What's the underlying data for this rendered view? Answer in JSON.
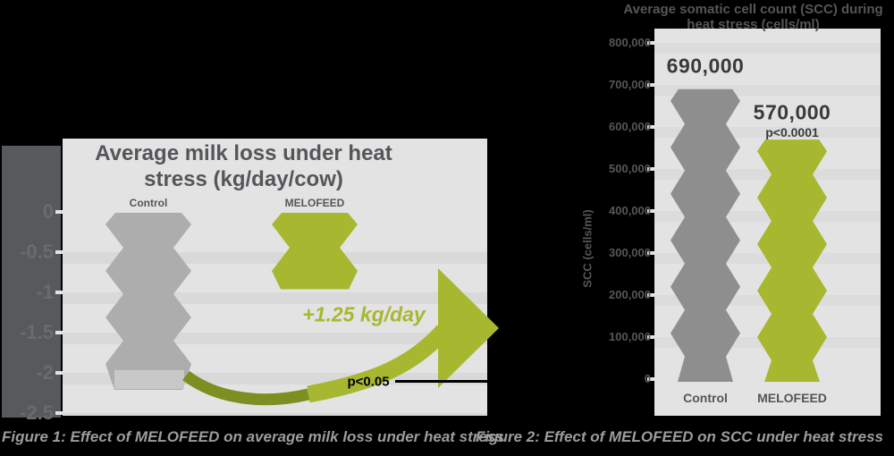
{
  "background_color": "#000000",
  "colors": {
    "plot_bg": "#e3e3e3",
    "stripe_fig1": "#d9d9d9",
    "stripe_fig2": "#dcdcdc",
    "dark_text": "#55565a",
    "axis_strip": "#58595b",
    "tick_mark": "#e3e3e3",
    "pedestal": "#c8c8c8",
    "data_label": "#3a3a3a",
    "caption_text": "#9c9c9c",
    "melofeed_green": "#a7b830",
    "swoosh_dark_green": "#7e8e20",
    "annotation_black": "#000000"
  },
  "captions": {
    "figure1": "Figure 1: Effect of MELOFEED on average milk loss under heat stress",
    "figure2": "Figure 2: Effect of MELOFEED on SCC under heat stress"
  },
  "chart_data": [
    {
      "type": "bar",
      "figure": "Figure 1",
      "title": "Average milk loss under heat stress (kg/day/cow)",
      "categories": [
        "Control",
        "MELOFEED"
      ],
      "values": [
        -2.2,
        -0.95
      ],
      "unit": "kg/day/cow",
      "ylim": [
        -2.5,
        0
      ],
      "yticks": [
        0,
        -0.5,
        -1,
        -1.5,
        -2,
        -2.5
      ],
      "ytick_labels": [
        "0",
        "-0.5",
        "-1",
        "-1.5",
        "-2",
        "-2.5"
      ],
      "bar_colors": [
        "#adadad",
        "#a7b830"
      ],
      "grid": "horizontal stripes",
      "legend": false,
      "annotations": [
        {
          "text": "+1.25 kg/day",
          "color": "#a7b830",
          "role": "milk-saved-arrow"
        },
        {
          "text": "p<0.05",
          "color": "#000000",
          "role": "significance"
        }
      ]
    },
    {
      "type": "bar",
      "figure": "Figure 2",
      "title": "Average somatic cell count (SCC) during heat stress (cells/ml)",
      "ylabel": "SCC (cells/ml)",
      "categories": [
        "Control",
        "MELOFEED"
      ],
      "values": [
        690000,
        570000
      ],
      "data_labels": [
        "690,000",
        "570,000"
      ],
      "significance_label": "p<0.0001",
      "ylim": [
        0,
        800000
      ],
      "yticks": [
        0,
        100000,
        200000,
        300000,
        400000,
        500000,
        600000,
        700000,
        800000
      ],
      "ytick_labels": [
        "0",
        "100,000",
        "200,000",
        "300,000",
        "400,000",
        "500,000",
        "600,000",
        "700,000",
        "800,000"
      ],
      "bar_colors": [
        "#8e8e8e",
        "#a7b830"
      ],
      "grid": "horizontal stripes",
      "legend": false
    }
  ]
}
